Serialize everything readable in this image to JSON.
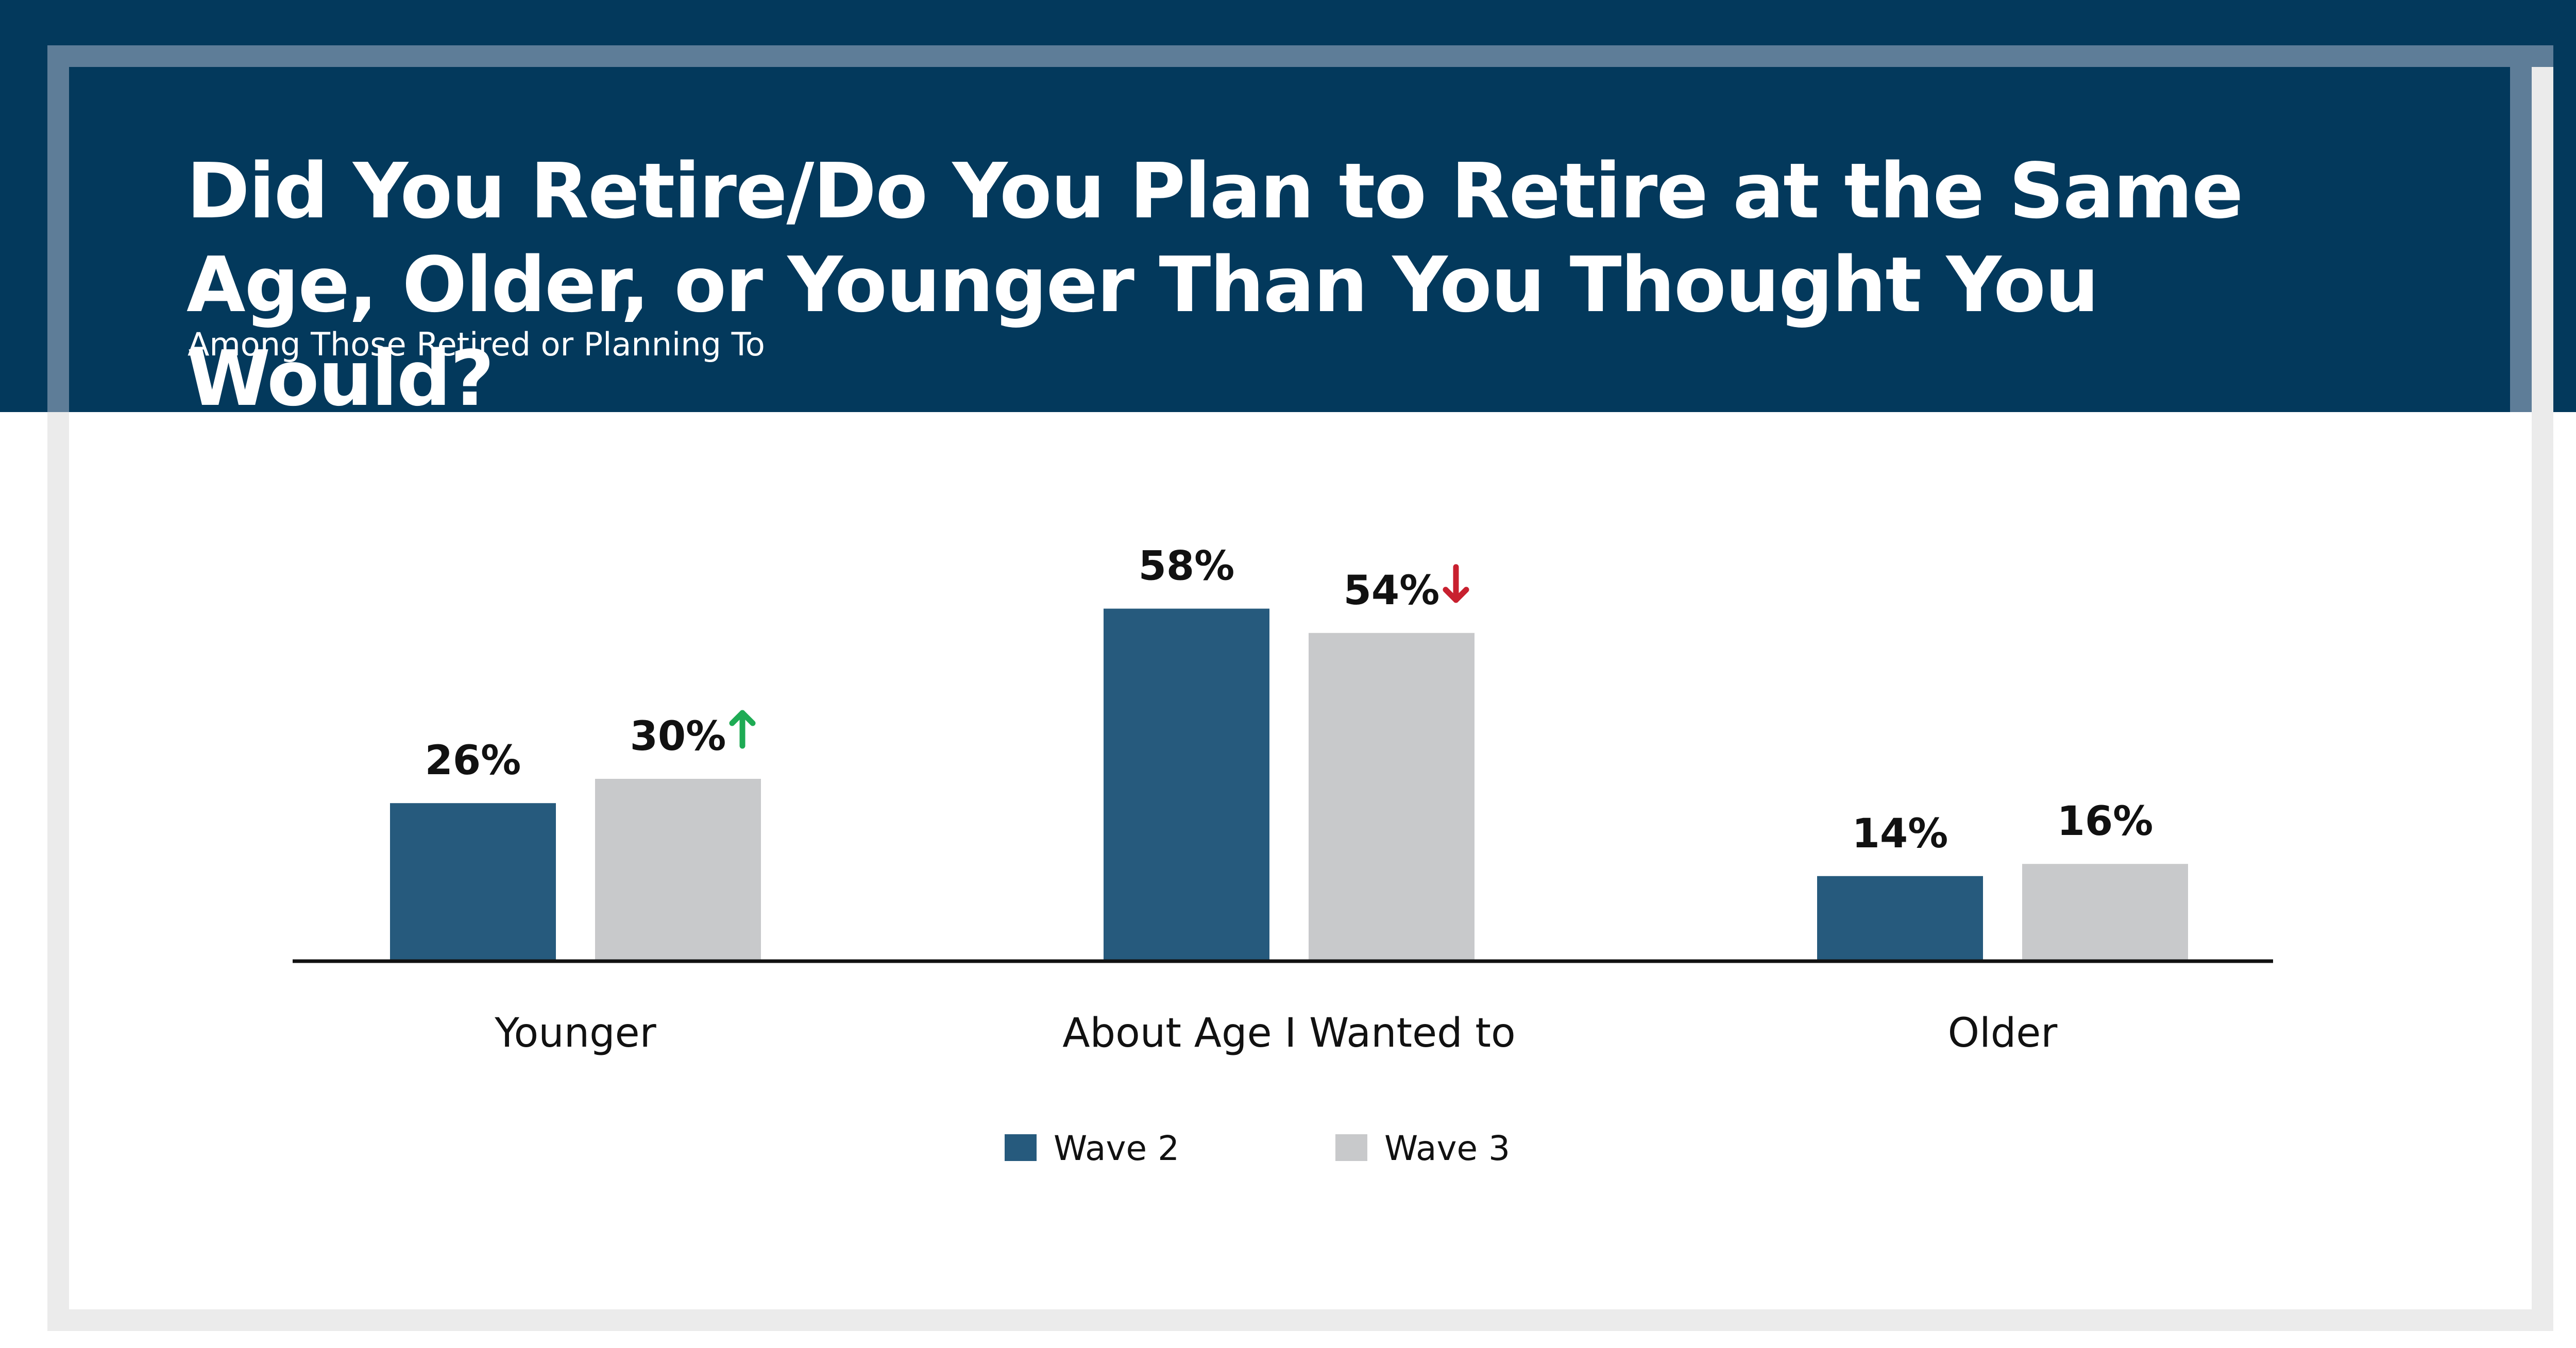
{
  "header": {
    "title": "Did You Retire/Do You Plan to Retire at the Same Age, Older, or Younger Than You Thought You Would?",
    "subtitle": "Among Those Retired or Planning To"
  },
  "chart_data": {
    "type": "bar",
    "title": "Did You Retire/Do You Plan to Retire at the Same Age, Older, or Younger Than You Thought You Would?",
    "subtitle": "Among Those Retired or Planning To",
    "categories": [
      "Younger",
      "About Age I Wanted to",
      "Older"
    ],
    "series": [
      {
        "name": "Wave 2",
        "color": "#265a7d",
        "values": [
          26,
          58,
          14
        ],
        "labels": [
          "26%",
          "58%",
          "14%"
        ],
        "changes": [
          "",
          "",
          ""
        ]
      },
      {
        "name": "Wave 3",
        "color": "#c8c9cb",
        "values": [
          30,
          54,
          16
        ],
        "labels": [
          "30%",
          "54%",
          "16%"
        ],
        "changes": [
          "up",
          "down",
          ""
        ]
      }
    ],
    "change_colors": {
      "up": "#1eab54",
      "down": "#c8202f"
    },
    "ylim": [
      0,
      62
    ],
    "grid": false,
    "legend_position": "bottom-center"
  }
}
